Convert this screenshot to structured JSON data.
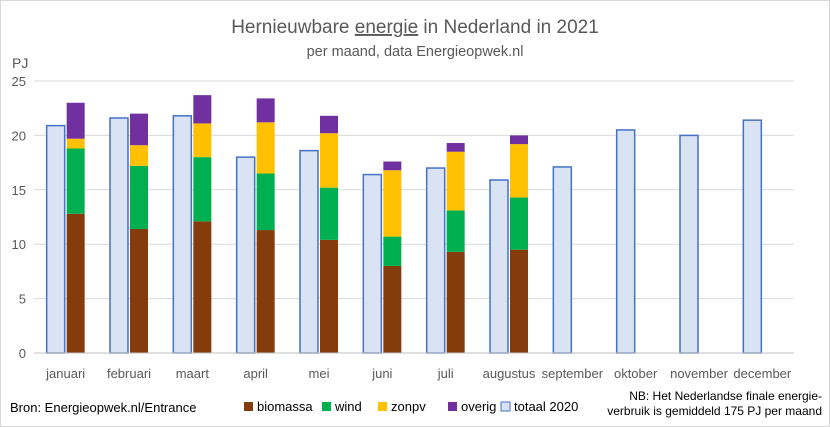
{
  "chart_data": {
    "type": "bar",
    "title_pre": "Hernieuwbare ",
    "title_underlined": "energie",
    "title_post": " in Nederland in 2021",
    "subtitle": "per maand, data Energieopwek.nl",
    "ylabel": "PJ",
    "ylim": [
      0,
      25
    ],
    "yticks": [
      0,
      5,
      10,
      15,
      20,
      25
    ],
    "grid": true,
    "categories": [
      "januari",
      "februari",
      "maart",
      "april",
      "mei",
      "juni",
      "juli",
      "augustus",
      "september",
      "oktober",
      "november",
      "december"
    ],
    "stacked_series": [
      {
        "name": "biomassa",
        "color": "#843c0c",
        "values": [
          12.8,
          11.4,
          12.1,
          11.3,
          10.4,
          8.0,
          9.3,
          9.5,
          null,
          null,
          null,
          null
        ]
      },
      {
        "name": "wind",
        "color": "#00b050",
        "values": [
          6.0,
          5.8,
          5.9,
          5.2,
          4.8,
          2.7,
          3.8,
          4.8,
          null,
          null,
          null,
          null
        ]
      },
      {
        "name": "zonpv",
        "color": "#ffc000",
        "values": [
          0.9,
          1.9,
          3.1,
          4.7,
          5.0,
          6.1,
          5.4,
          4.9,
          null,
          null,
          null,
          null
        ]
      },
      {
        "name": "overig",
        "color": "#7030a0",
        "values": [
          3.3,
          2.9,
          2.6,
          2.2,
          1.6,
          0.8,
          0.8,
          0.8,
          null,
          null,
          null,
          null
        ]
      }
    ],
    "comparison_series": {
      "name": "totaal 2020",
      "fill": "#dae3f3",
      "stroke": "#4472c4",
      "values": [
        20.9,
        21.6,
        21.8,
        18.0,
        18.6,
        16.4,
        17.0,
        15.9,
        17.1,
        20.5,
        20.0,
        21.4
      ]
    },
    "legend_position": "bottom",
    "source_note": "Bron: Energieopwek.nl/Entrance",
    "footnote_line1": "NB: Het Nederlandse finale energie-",
    "footnote_line2": "verbruik is gemiddeld 175 PJ per maand"
  }
}
